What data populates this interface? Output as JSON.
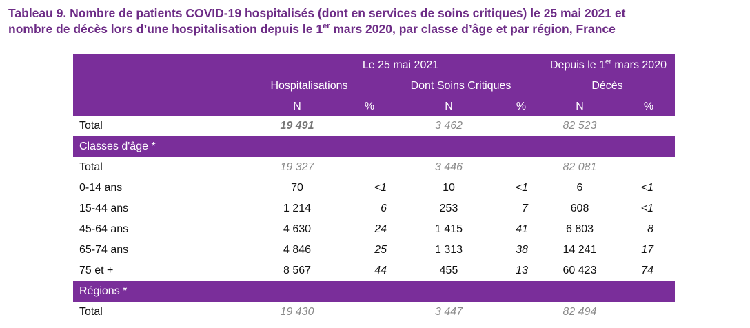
{
  "title": {
    "line1": "Tableau 9. Nombre de patients COVID-19 hospitalisés (dont en services de soins critiques) le 25 mai 2021 et",
    "line2_a": "nombre de décès lors d’une hospitalisation depuis le 1",
    "line2_sup": "er",
    "line2_b": " mars 2020, par classe d’âge et par région, France"
  },
  "header": {
    "group1": "Le 25 mai 2021",
    "group2_a": "Depuis le 1",
    "group2_sup": "er",
    "group2_b": " mars 2020",
    "col_hosp": "Hospitalisations",
    "col_crit": "Dont Soins Critiques",
    "col_deces": "Décès",
    "n": "N",
    "pct": "%"
  },
  "rows": {
    "total": {
      "label": "Total",
      "hn": "19 491",
      "sn": "3 462",
      "dn": "82 523"
    },
    "section_age": "Classes d'âge *",
    "age_total": {
      "label": "Total",
      "hn": "19 327",
      "sn": "3 446",
      "dn": "82 081"
    },
    "age": [
      {
        "label": "0-14 ans",
        "hn": "70",
        "hp": "<1",
        "sn": "10",
        "sp": "<1",
        "dn": "6",
        "dp": "<1"
      },
      {
        "label": "15-44 ans",
        "hn": "1 214",
        "hp": "6",
        "sn": "253",
        "sp": "7",
        "dn": "608",
        "dp": "<1"
      },
      {
        "label": "45-64 ans",
        "hn": "4 630",
        "hp": "24",
        "sn": "1 415",
        "sp": "41",
        "dn": "6 803",
        "dp": "8"
      },
      {
        "label": "65-74 ans",
        "hn": "4 846",
        "hp": "25",
        "sn": "1 313",
        "sp": "38",
        "dn": "14 241",
        "dp": "17"
      },
      {
        "label": "75 et +",
        "hn": "8 567",
        "hp": "44",
        "sn": "455",
        "sp": "13",
        "dn": "60 423",
        "dp": "74"
      }
    ],
    "section_regions": "Régions *",
    "reg_total": {
      "label": "Total",
      "hn": "19 430",
      "sn": "3 447",
      "dn": "82 494"
    }
  }
}
